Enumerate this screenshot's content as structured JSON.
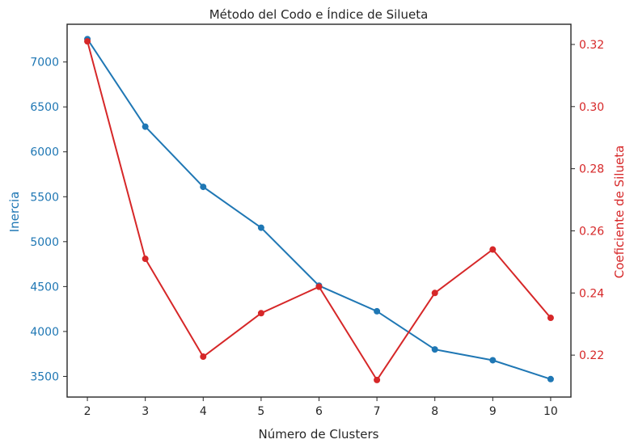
{
  "chart_data": {
    "type": "line",
    "title": "Método del Codo e Índice de Silueta",
    "xlabel": "Número de Clusters",
    "ylabel_left": "Inercia",
    "ylabel_right": "Coeficiente de Silueta",
    "x": [
      2,
      3,
      4,
      5,
      6,
      7,
      8,
      9,
      10
    ],
    "xlim": [
      1.65,
      10.35
    ],
    "left_axis": {
      "ylim": [
        3270,
        7420
      ],
      "ticks": [
        3500,
        4000,
        4500,
        5000,
        5500,
        6000,
        6500,
        7000
      ],
      "tick_labels": [
        "3500",
        "4000",
        "4500",
        "5000",
        "5500",
        "6000",
        "6500",
        "7000"
      ],
      "color": "#1f77b4"
    },
    "right_axis": {
      "ylim": [
        0.2065,
        0.3265
      ],
      "ticks": [
        0.22,
        0.24,
        0.26,
        0.28,
        0.3,
        0.32
      ],
      "tick_labels": [
        "0.22",
        "0.24",
        "0.26",
        "0.28",
        "0.30",
        "0.32"
      ],
      "color": "#d62728"
    },
    "series": [
      {
        "axis": "left",
        "color": "#1f77b4",
        "values": [
          7255,
          6280,
          5610,
          5155,
          4510,
          4225,
          3800,
          3680,
          3470
        ]
      },
      {
        "axis": "right",
        "color": "#d62728",
        "values": [
          0.321,
          0.251,
          0.2195,
          0.2335,
          0.242,
          0.212,
          0.24,
          0.254,
          0.232
        ]
      }
    ],
    "grid": false
  }
}
